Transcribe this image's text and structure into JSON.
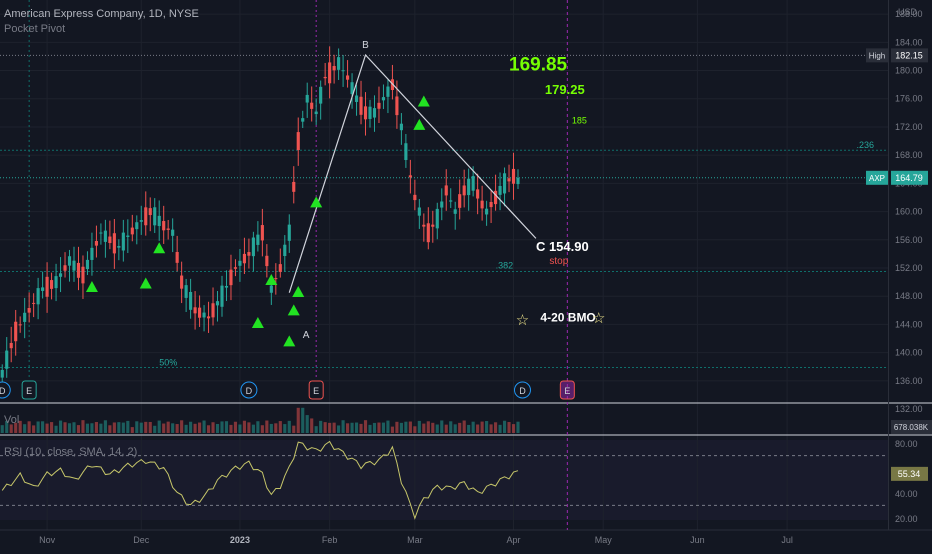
{
  "header": {
    "symbol_title": "American Express Company, 1D, NYSE",
    "indicator": "Pocket Pivot"
  },
  "colors": {
    "background": "#131722",
    "up": "#26a69a",
    "down": "#ef5350",
    "triangle": "#22e322",
    "annotation_green": "#76ff03",
    "white_line": "#d1d4dc",
    "rsi_line": "#c6c66a",
    "dotted_teal": "#0f6e6a",
    "event_purple": "#9c27b0"
  },
  "chart_data": {
    "type": "candlestick",
    "title": "American Express Company, 1D, NYSE",
    "currency_label": "USD",
    "price_axis": {
      "range": [
        133,
        190
      ],
      "ticks": [
        "188.00",
        "184.00",
        "180.00",
        "176.00",
        "172.00",
        "168.00",
        "164.00",
        "160.00",
        "156.00",
        "152.00",
        "148.00",
        "144.00",
        "140.00",
        "136.00",
        "132.00"
      ]
    },
    "x_axis": {
      "labels": [
        {
          "text": "Nov",
          "index": 10
        },
        {
          "text": "Dec",
          "index": 31
        },
        {
          "text": "2023",
          "index": 53
        },
        {
          "text": "Feb",
          "index": 73
        },
        {
          "text": "Mar",
          "index": 92
        },
        {
          "text": "Apr",
          "index": 114
        },
        {
          "text": "May",
          "index": 134
        },
        {
          "text": "Jun",
          "index": 155
        },
        {
          "text": "Jul",
          "index": 175
        }
      ],
      "total_slots": 198
    },
    "candles": [],
    "high_label": {
      "label": "High",
      "value": "182.15"
    },
    "last_label": {
      "label": "AXP",
      "value": "164.79"
    },
    "fib_lines": [
      {
        "label": ".236",
        "price": 168.7
      },
      {
        "label": ".382",
        "price": 151.5
      },
      {
        "label": "50%",
        "price": 137.9
      }
    ],
    "annotations": {
      "pt_169": "169.85",
      "pt_179": "179.25",
      "pt_185": "185",
      "point_b": "B",
      "point_a": "A",
      "point_c": "C 154.90",
      "stop": "stop",
      "bmo": "4-20 BMO"
    },
    "events": [
      {
        "label": "D",
        "index": 0
      },
      {
        "label": "E",
        "index": 6
      },
      {
        "label": "D",
        "index": 55
      },
      {
        "label": "E",
        "index": 70
      },
      {
        "label": "D",
        "index": 116
      },
      {
        "label": "E",
        "index": 126
      }
    ],
    "volume": {
      "label": "Vol",
      "value": "678.038K",
      "values": []
    },
    "rsi": {
      "label": "RSI (10, close, SMA, 14, 2)",
      "value": "55.34",
      "ticks": [
        "80.00",
        "40.00",
        "20.00"
      ],
      "upper": 70,
      "lower": 30,
      "range": [
        15,
        85
      ],
      "values": []
    }
  }
}
